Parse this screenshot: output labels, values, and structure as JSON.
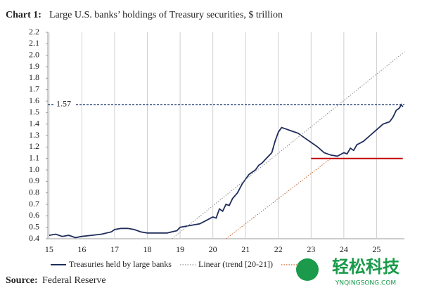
{
  "chart_data": {
    "type": "line",
    "title_prefix": "Chart 1:",
    "title": "Large U.S. banks’ holdings of Treasury securities, $ trillion",
    "source_label": "Source:",
    "source": "Federal Reserve",
    "watermark": "轻松科技",
    "watermark_url": "YNQINGSONG.COM",
    "xlim": [
      14.96,
      25.85
    ],
    "xticks": [
      15,
      16,
      17,
      18,
      19,
      20,
      21,
      22,
      23,
      24,
      25
    ],
    "ylim": [
      0.4,
      2.2
    ],
    "yticks": [
      0.4,
      0.5,
      0.6,
      0.7,
      0.8,
      0.9,
      {
        "value": 1,
        "label": "1.0"
      },
      1.1,
      1.2,
      1.3,
      1.4,
      1.5,
      1.6,
      1.7,
      1.8,
      1.9,
      {
        "value": 2,
        "label": "2.0"
      },
      2.1,
      2.2
    ],
    "grid": true,
    "reference_line": {
      "value": 1.57,
      "color": "#1f3a6e"
    },
    "series": [
      {
        "name": "Treasuries held by large banks",
        "color": "#1f2d5c",
        "style": "solid",
        "in_legend": true,
        "x": [
          15.0,
          15.2,
          15.4,
          15.6,
          15.8,
          16.0,
          16.3,
          16.6,
          16.9,
          17.0,
          17.2,
          17.4,
          17.6,
          17.8,
          18.0,
          18.3,
          18.6,
          18.9,
          19.0,
          19.2,
          19.4,
          19.6,
          19.8,
          20.0,
          20.1,
          20.15,
          20.2,
          20.3,
          20.4,
          20.5,
          20.6,
          20.75,
          20.9,
          21.0,
          21.1,
          21.2,
          21.3,
          21.4,
          21.5,
          21.6,
          21.7,
          21.8,
          21.9,
          22.0,
          22.1,
          22.2,
          22.4,
          22.6,
          22.8,
          23.0,
          23.2,
          23.4,
          23.6,
          23.8,
          24.0,
          24.1,
          24.2,
          24.3,
          24.4,
          24.6,
          24.8,
          25.0,
          25.2,
          25.4,
          25.5,
          25.6,
          25.7,
          25.75,
          25.8
        ],
        "values": [
          0.43,
          0.44,
          0.42,
          0.43,
          0.41,
          0.42,
          0.43,
          0.44,
          0.46,
          0.48,
          0.49,
          0.49,
          0.48,
          0.46,
          0.45,
          0.45,
          0.45,
          0.47,
          0.5,
          0.51,
          0.52,
          0.53,
          0.56,
          0.59,
          0.58,
          0.62,
          0.66,
          0.64,
          0.7,
          0.69,
          0.75,
          0.8,
          0.88,
          0.92,
          0.96,
          0.98,
          1.0,
          1.04,
          1.06,
          1.09,
          1.12,
          1.15,
          1.25,
          1.33,
          1.37,
          1.36,
          1.34,
          1.32,
          1.28,
          1.24,
          1.2,
          1.15,
          1.13,
          1.12,
          1.15,
          1.14,
          1.19,
          1.17,
          1.22,
          1.25,
          1.3,
          1.35,
          1.4,
          1.42,
          1.46,
          1.52,
          1.54,
          1.57,
          1.55
        ]
      },
      {
        "name": "Linear (trend [20-21])",
        "color": "#8a8a8a",
        "style": "dotted",
        "in_legend": true,
        "x": [
          18.75,
          25.85
        ],
        "values": [
          0.4,
          2.03
        ]
      },
      {
        "color": "#c0622a",
        "style": "dotted",
        "in_legend": true,
        "x": [
          20.4,
          23.6
        ],
        "values": [
          0.4,
          1.1
        ]
      },
      {
        "color": "#c00000",
        "style": "solid",
        "in_legend": false,
        "x": [
          23.0,
          25.8
        ],
        "values": [
          1.1,
          1.1
        ]
      }
    ]
  }
}
